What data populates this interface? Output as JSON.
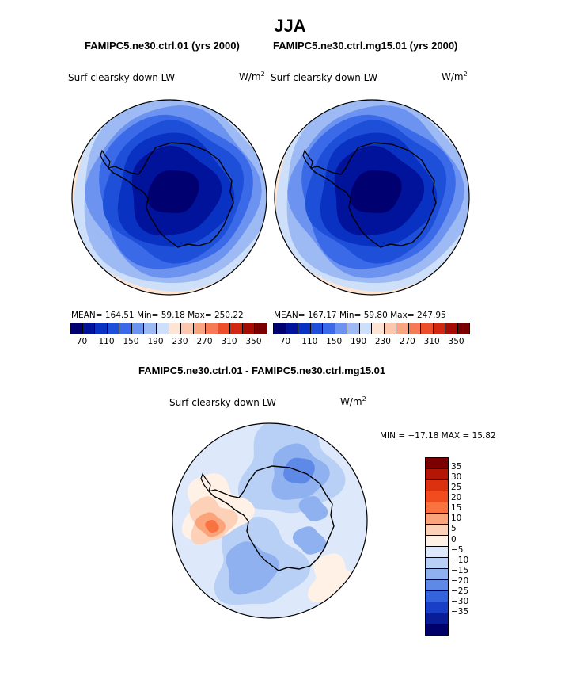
{
  "chart_data": [
    {
      "type": "heatmap",
      "projection": "south-polar-stereographic",
      "title": "FAMIPC5.ne30.ctrl.01 (yrs 2000)",
      "variable": "Surf clearsky down LW",
      "units": "W/m²",
      "stats": {
        "mean": "164.51",
        "min": "59.18",
        "max": "250.22"
      },
      "stats_text": "MEAN= 164.51   Min=   59.18   Max= 250.22",
      "levels": [
        70,
        90,
        110,
        130,
        150,
        170,
        190,
        210,
        230,
        250,
        270,
        290,
        310,
        330,
        350
      ],
      "level_labels": [
        "70",
        "110",
        "150",
        "190",
        "230",
        "270",
        "310",
        "350"
      ]
    },
    {
      "type": "heatmap",
      "projection": "south-polar-stereographic",
      "title": "FAMIPC5.ne30.ctrl.mg15.01 (yrs 2000)",
      "variable": "Surf clearsky down LW",
      "units": "W/m²",
      "stats": {
        "mean": "167.17",
        "min": "59.80",
        "max": "247.95"
      },
      "stats_text": "MEAN= 167.17   Min=   59.80   Max= 247.95",
      "levels": [
        70,
        90,
        110,
        130,
        150,
        170,
        190,
        210,
        230,
        250,
        270,
        290,
        310,
        330,
        350
      ],
      "level_labels": [
        "70",
        "110",
        "150",
        "190",
        "230",
        "270",
        "310",
        "350"
      ]
    },
    {
      "type": "heatmap",
      "projection": "south-polar-stereographic",
      "title": "FAMIPC5.ne30.ctrl.01 - FAMIPC5.ne30.ctrl.mg15.01",
      "variable": "Surf clearsky down LW",
      "units": "W/m²",
      "stats": {
        "min": "-17.18",
        "max": "15.82"
      },
      "stats_text": "MIN = −17.18  MAX =   15.82",
      "levels": [
        35,
        30,
        25,
        20,
        15,
        10,
        5,
        0,
        -5,
        -10,
        -15,
        -20,
        -25,
        -30,
        -35
      ],
      "level_labels": [
        "35",
        "30",
        "25",
        "20",
        "15",
        "10",
        "5",
        "0",
        "−5",
        "−10",
        "−15",
        "−20",
        "−25",
        "−30",
        "−35"
      ]
    }
  ],
  "page_title": "JJA",
  "palette_abs": [
    "#000070",
    "#00139a",
    "#0932c2",
    "#1e4fd8",
    "#3a6ae8",
    "#6b93ef",
    "#9dbaf4",
    "#cddff9",
    "#fde4d3",
    "#fbc8ad",
    "#f9a582",
    "#f57a55",
    "#ec4e2a",
    "#d1280f",
    "#a50d03",
    "#7a0000"
  ],
  "palette_diff": [
    "#7d0000",
    "#b31604",
    "#db310f",
    "#f14b20",
    "#f8733f",
    "#fba37a",
    "#fdd0b8",
    "#fff1e6",
    "#dde9fb",
    "#b8d0f6",
    "#8fb1f0",
    "#5f89e6",
    "#3563db",
    "#1a3fc7",
    "#0a1d99",
    "#00006b"
  ],
  "land_color": "#ffffff",
  "coast_color": "#000000"
}
